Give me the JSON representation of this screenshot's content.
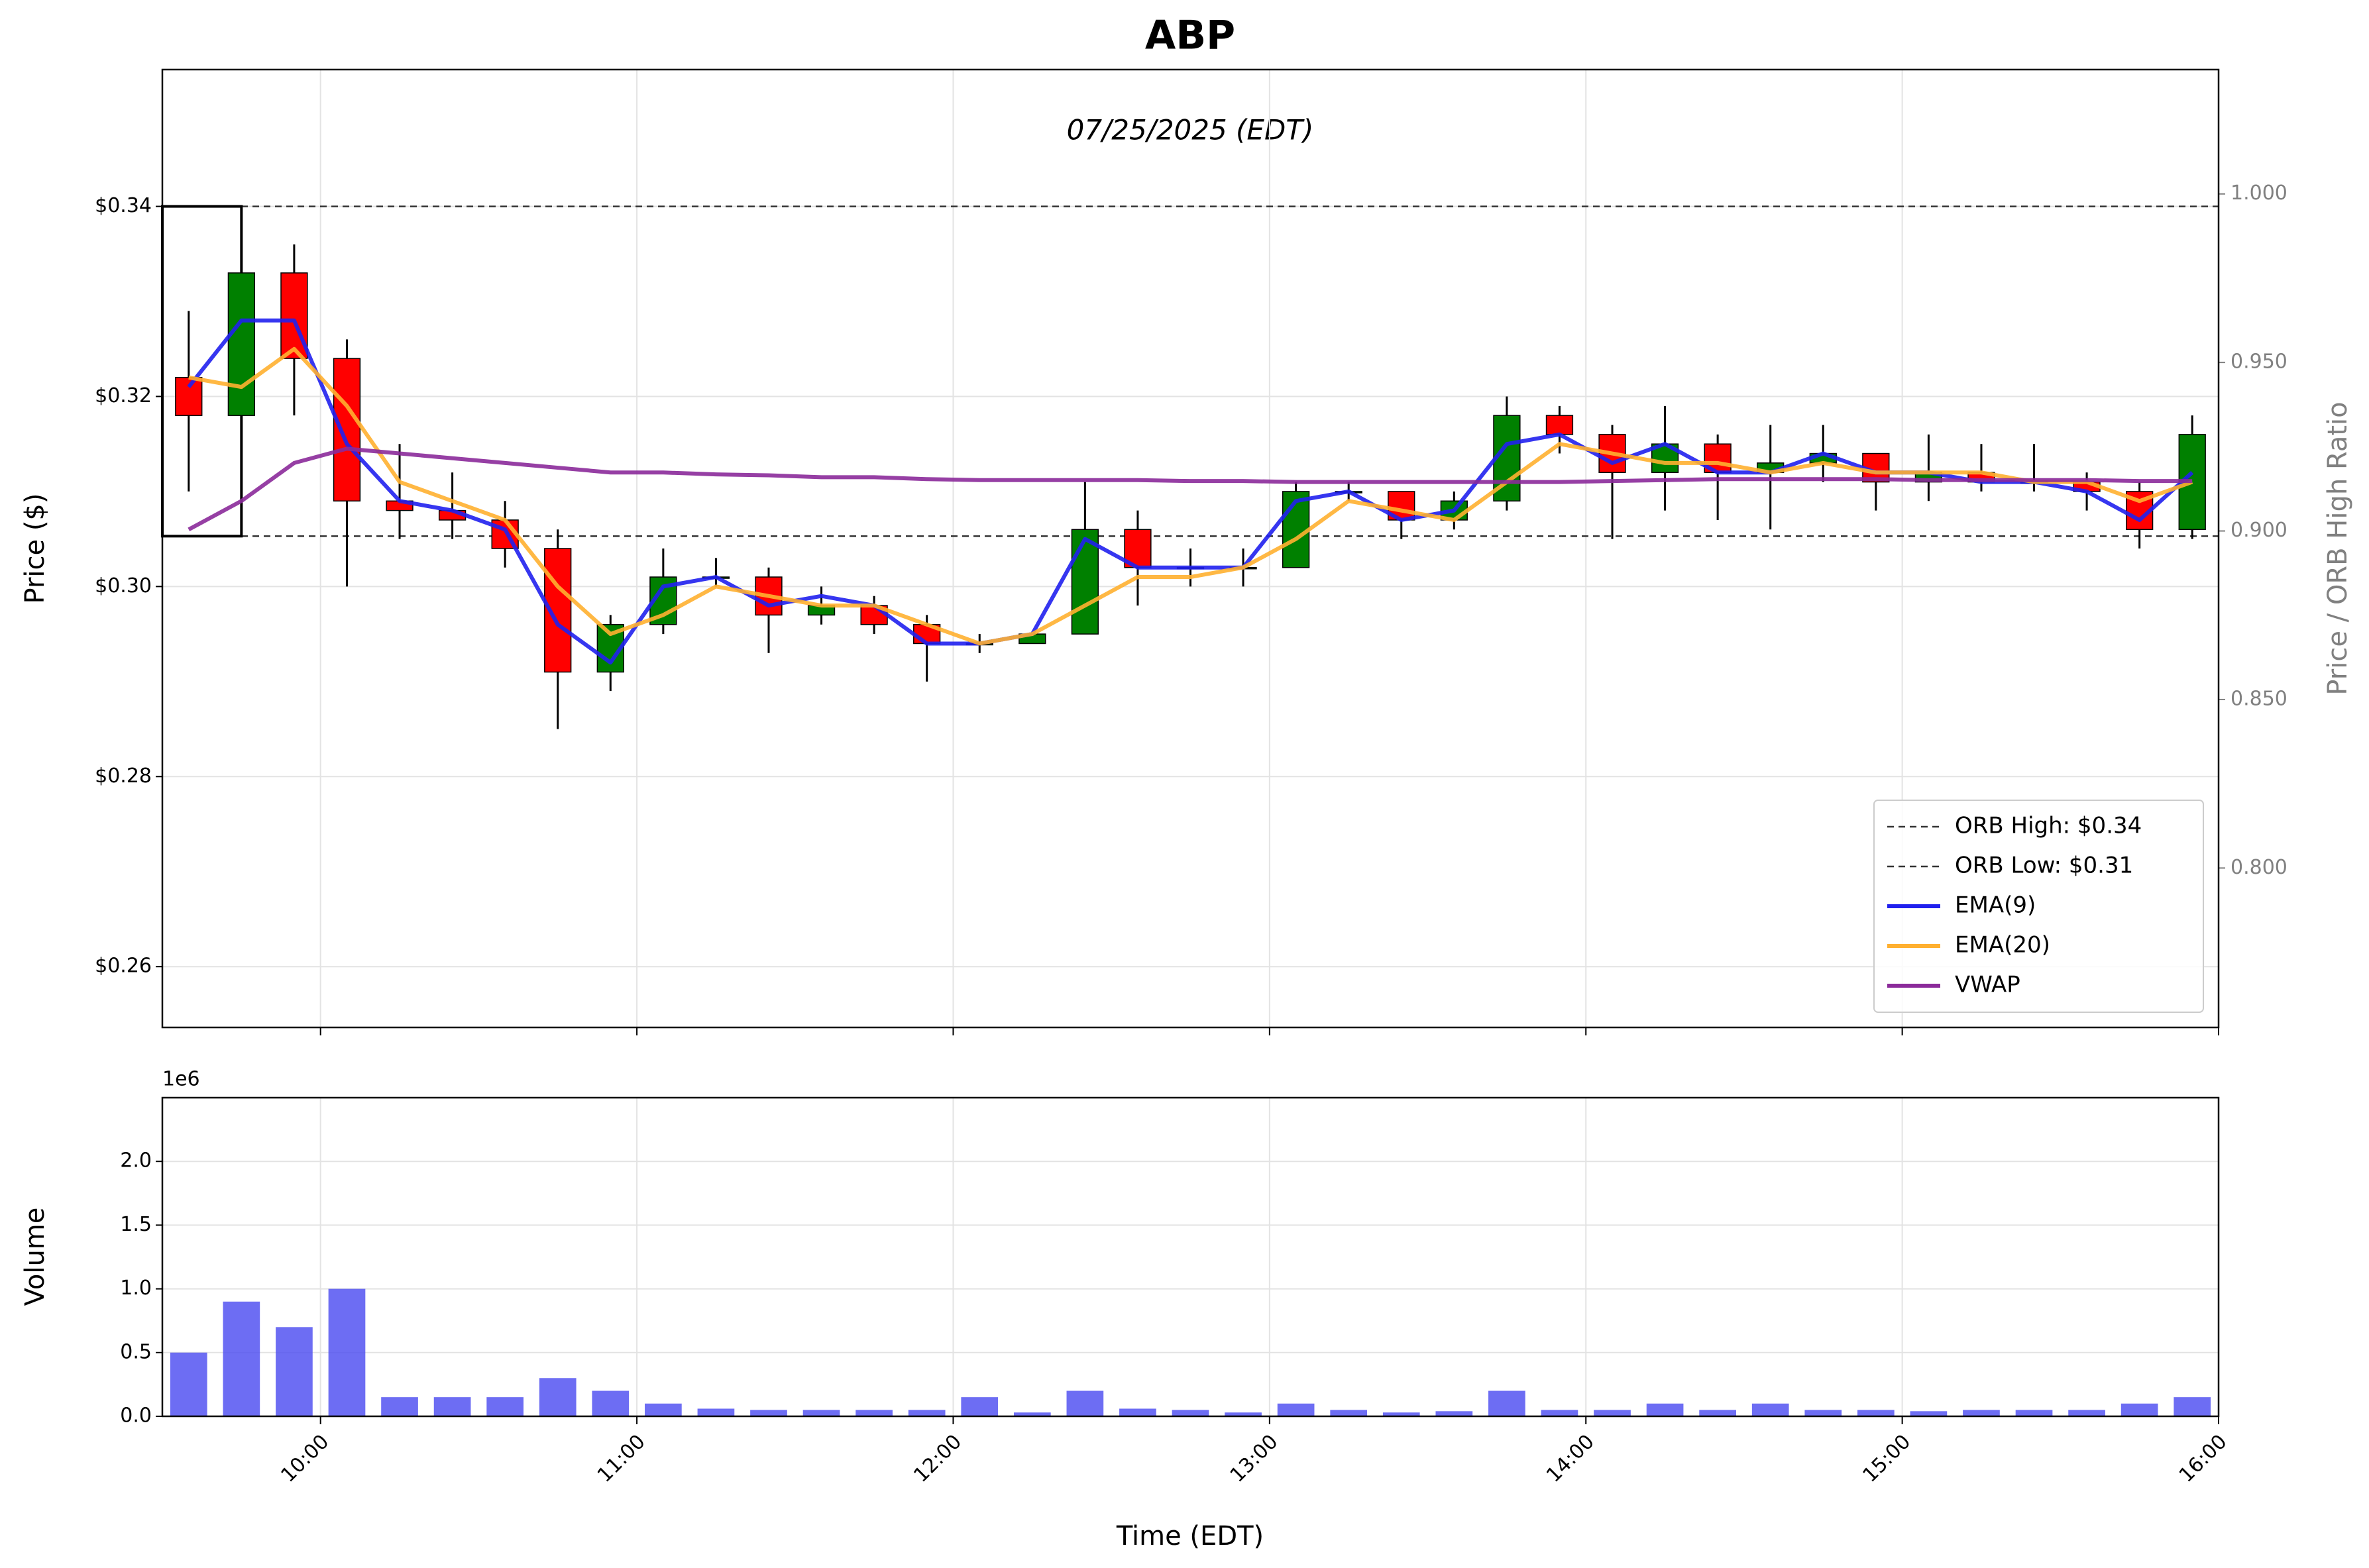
{
  "chart_data": [
    {
      "type": "candlestick",
      "title": "ABP",
      "subtitle": "07/25/2025 (EDT)",
      "y_label": "Price ($)",
      "y2_label": "Price / ORB High Ratio",
      "x": [
        "09:30",
        "09:40",
        "09:50",
        "10:00",
        "10:10",
        "10:20",
        "10:30",
        "10:40",
        "10:50",
        "11:00",
        "11:10",
        "11:20",
        "11:30",
        "11:40",
        "11:50",
        "12:00",
        "12:10",
        "12:20",
        "12:30",
        "12:40",
        "12:50",
        "13:00",
        "13:10",
        "13:20",
        "13:30",
        "13:40",
        "13:50",
        "14:00",
        "14:10",
        "14:20",
        "14:30",
        "14:40",
        "14:50",
        "15:00",
        "15:10",
        "15:20",
        "15:30",
        "15:40",
        "15:50"
      ],
      "open": [
        0.322,
        0.318,
        0.333,
        0.324,
        0.309,
        0.308,
        0.307,
        0.304,
        0.291,
        0.296,
        0.301,
        0.301,
        0.297,
        0.298,
        0.296,
        0.294,
        0.294,
        0.295,
        0.306,
        0.302,
        0.302,
        0.302,
        0.31,
        0.31,
        0.307,
        0.309,
        0.318,
        0.316,
        0.312,
        0.315,
        0.312,
        0.313,
        0.314,
        0.311,
        0.312,
        0.311,
        0.311,
        0.31,
        0.306
      ],
      "high": [
        0.329,
        0.34,
        0.336,
        0.326,
        0.315,
        0.312,
        0.309,
        0.306,
        0.297,
        0.304,
        0.303,
        0.302,
        0.3,
        0.299,
        0.297,
        0.295,
        0.295,
        0.311,
        0.308,
        0.304,
        0.304,
        0.311,
        0.311,
        0.31,
        0.31,
        0.32,
        0.319,
        0.317,
        0.319,
        0.316,
        0.317,
        0.317,
        0.314,
        0.316,
        0.315,
        0.315,
        0.312,
        0.311,
        0.318
      ],
      "low": [
        0.31,
        0.315,
        0.318,
        0.3,
        0.305,
        0.305,
        0.302,
        0.285,
        0.289,
        0.295,
        0.3,
        0.293,
        0.296,
        0.295,
        0.29,
        0.293,
        0.294,
        0.295,
        0.298,
        0.3,
        0.3,
        0.302,
        0.309,
        0.305,
        0.306,
        0.308,
        0.314,
        0.305,
        0.308,
        0.307,
        0.306,
        0.311,
        0.308,
        0.309,
        0.31,
        0.31,
        0.308,
        0.304,
        0.305
      ],
      "close": [
        0.318,
        0.333,
        0.324,
        0.309,
        0.308,
        0.307,
        0.304,
        0.291,
        0.296,
        0.301,
        0.301,
        0.297,
        0.298,
        0.296,
        0.294,
        0.294,
        0.295,
        0.306,
        0.302,
        0.302,
        0.302,
        0.31,
        0.31,
        0.307,
        0.309,
        0.318,
        0.316,
        0.312,
        0.315,
        0.312,
        0.313,
        0.314,
        0.311,
        0.312,
        0.311,
        0.311,
        0.31,
        0.306,
        0.316
      ],
      "up_color": "#008000",
      "down_color": "#ff0000",
      "levels": [
        {
          "name": "ORB High: $0.34",
          "value": 0.34,
          "color": "#333333"
        },
        {
          "name": "ORB Low: $0.31",
          "value": 0.3053,
          "color": "#333333"
        }
      ],
      "orb_window": [
        "09:30",
        "09:45"
      ],
      "series": [
        {
          "name": "EMA(9)",
          "color": "#2020ee",
          "values": [
            0.321,
            0.328,
            0.328,
            0.315,
            0.309,
            0.308,
            0.306,
            0.296,
            0.292,
            0.3,
            0.301,
            0.298,
            0.299,
            0.298,
            0.294,
            0.294,
            0.295,
            0.305,
            0.302,
            0.302,
            0.302,
            0.309,
            0.31,
            0.307,
            0.308,
            0.315,
            0.316,
            0.313,
            0.315,
            0.312,
            0.312,
            0.314,
            0.312,
            0.312,
            0.311,
            0.311,
            0.31,
            0.307,
            0.312
          ]
        },
        {
          "name": "EMA(20)",
          "color": "#ffb030",
          "values": [
            0.322,
            0.321,
            0.325,
            0.319,
            0.311,
            0.309,
            0.307,
            0.3,
            0.295,
            0.297,
            0.3,
            0.299,
            0.298,
            0.298,
            0.296,
            0.294,
            0.295,
            0.298,
            0.301,
            0.301,
            0.302,
            0.305,
            0.309,
            0.308,
            0.307,
            0.311,
            0.315,
            0.314,
            0.313,
            0.313,
            0.312,
            0.313,
            0.312,
            0.312,
            0.312,
            0.311,
            0.311,
            0.309,
            0.311
          ]
        },
        {
          "name": "VWAP",
          "color": "#8b2a9a",
          "values": [
            0.306,
            0.309,
            0.313,
            0.3145,
            0.314,
            0.3135,
            0.313,
            0.3125,
            0.312,
            0.312,
            0.3118,
            0.3117,
            0.3115,
            0.3115,
            0.3113,
            0.3112,
            0.3112,
            0.3112,
            0.3112,
            0.3111,
            0.3111,
            0.311,
            0.311,
            0.311,
            0.311,
            0.311,
            0.311,
            0.3111,
            0.3112,
            0.3113,
            0.3113,
            0.3113,
            0.3113,
            0.3112,
            0.3112,
            0.3112,
            0.3112,
            0.3111,
            0.3111
          ]
        }
      ],
      "xlim": [
        "09:30",
        "16:00"
      ],
      "ylim": [
        0.2536,
        0.3544
      ],
      "yticks": [
        {
          "value": 0.26,
          "label": "$0.26"
        },
        {
          "value": 0.28,
          "label": "$0.28"
        },
        {
          "value": 0.3,
          "label": "$0.30"
        },
        {
          "value": 0.32,
          "label": "$0.32"
        },
        {
          "value": 0.34,
          "label": "$0.34"
        }
      ],
      "y2lim": [
        0.7527,
        1.0369
      ],
      "y2ticks": [
        {
          "value": 0.8,
          "label": "0.800"
        },
        {
          "value": 0.85,
          "label": "0.850"
        },
        {
          "value": 0.9,
          "label": "0.900"
        },
        {
          "value": 0.95,
          "label": "0.950"
        },
        {
          "value": 1.0,
          "label": "1.000"
        }
      ],
      "grid": true,
      "legend": "lower right"
    },
    {
      "type": "bar",
      "y_label": "Volume",
      "x_label": "Time (EDT)",
      "offset_label": "1e6",
      "color": "#4848f0",
      "x": [
        "09:30",
        "09:40",
        "09:50",
        "10:00",
        "10:10",
        "10:20",
        "10:30",
        "10:40",
        "10:50",
        "11:00",
        "11:10",
        "11:20",
        "11:30",
        "11:40",
        "11:50",
        "12:00",
        "12:10",
        "12:20",
        "12:30",
        "12:40",
        "12:50",
        "13:00",
        "13:10",
        "13:20",
        "13:30",
        "13:40",
        "13:50",
        "14:00",
        "14:10",
        "14:20",
        "14:30",
        "14:40",
        "14:50",
        "15:00",
        "15:10",
        "15:20",
        "15:30",
        "15:40",
        "15:50"
      ],
      "values": [
        0.5,
        0.9,
        0.7,
        1.0,
        0.15,
        0.15,
        0.15,
        0.3,
        0.2,
        0.1,
        0.06,
        0.05,
        0.05,
        0.05,
        0.05,
        0.15,
        0.03,
        0.2,
        0.06,
        0.05,
        0.03,
        0.1,
        0.05,
        0.03,
        0.04,
        0.2,
        0.05,
        0.05,
        0.1,
        0.05,
        0.1,
        0.05,
        0.05,
        0.04,
        0.05,
        0.05,
        0.05,
        0.1,
        0.15
      ],
      "xlim": [
        "09:30",
        "16:00"
      ],
      "xticks": [
        "10:00",
        "11:00",
        "12:00",
        "13:00",
        "14:00",
        "15:00",
        "16:00"
      ],
      "ylim": [
        0,
        2.5
      ],
      "yticks": [
        {
          "value": 0,
          "label": "0.0"
        },
        {
          "value": 0.5,
          "label": "0.5"
        },
        {
          "value": 1.0,
          "label": "1.0"
        },
        {
          "value": 1.5,
          "label": "1.5"
        },
        {
          "value": 2.0,
          "label": "2.0"
        }
      ],
      "grid": true
    }
  ]
}
